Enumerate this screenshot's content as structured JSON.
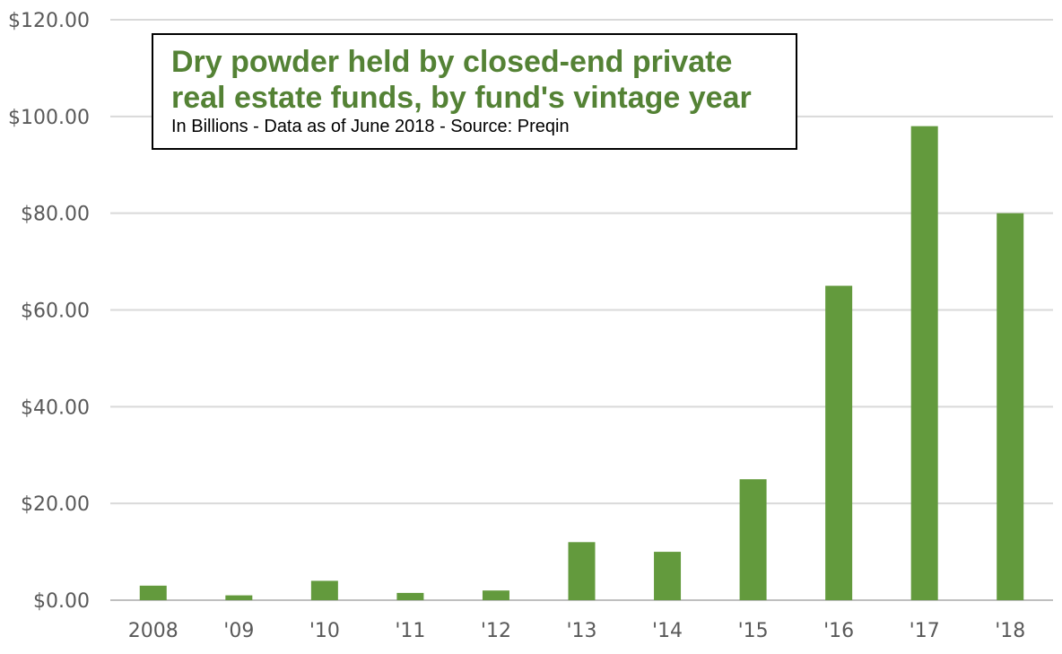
{
  "chart_data": {
    "type": "bar",
    "title_line1": "Dry powder held by closed-end private",
    "title_line2": "real estate funds, by fund's vintage year",
    "subtitle": "In Billions - Data as of June 2018 - Source: Preqin",
    "categories": [
      "2008",
      "'09",
      "'10",
      "'11",
      "'12",
      "'13",
      "'14",
      "'15",
      "'16",
      "'17",
      "'18"
    ],
    "values": [
      3,
      1,
      4,
      1.5,
      2,
      12,
      10,
      25,
      65,
      98,
      80
    ],
    "yticks": [
      "$0.00",
      "$20.00",
      "$40.00",
      "$60.00",
      "$80.00",
      "$100.00",
      "$120.00"
    ],
    "ylim": [
      0,
      120
    ],
    "xlabel": "",
    "ylabel": "",
    "grid": true,
    "bar_color": "#639A3D",
    "title_color": "#548235"
  }
}
